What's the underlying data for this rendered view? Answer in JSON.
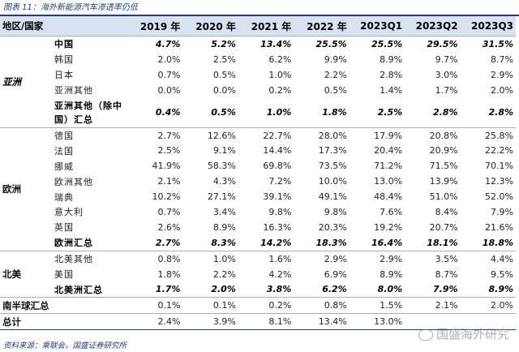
{
  "caption": "图表 11：海外新能源汽车渗透率仍低",
  "header": {
    "region_label": "地区/国家",
    "columns": [
      "2019 年",
      "2020 年",
      "2021 年",
      "2022 年",
      "2023Q1",
      "2023Q2",
      "2023Q3"
    ]
  },
  "regions": {
    "asia": "亚洲",
    "europe": "欧洲",
    "north_america": "北美",
    "southern_hemisphere": "南半球汇总",
    "total": "总计"
  },
  "rows": [
    {
      "country": "中国",
      "values": [
        "4.7%",
        "5.2%",
        "13.4%",
        "25.5%",
        "25.5%",
        "29.5%",
        "31.5%"
      ]
    },
    {
      "country": "韩国",
      "values": [
        "2.0%",
        "2.5%",
        "6.2%",
        "9.9%",
        "8.9%",
        "9.7%",
        "8.7%"
      ]
    },
    {
      "country": "日本",
      "values": [
        "0.7%",
        "0.5%",
        "1.0%",
        "2.2%",
        "2.8%",
        "3.0%",
        "2.9%"
      ]
    },
    {
      "country": "亚洲其他",
      "values": [
        "0.0%",
        "0.0%",
        "0.2%",
        "0.5%",
        "1.4%",
        "1.7%",
        "2.0%"
      ]
    },
    {
      "country": "亚洲其他（除中国）汇总",
      "values": [
        "0.4%",
        "0.5%",
        "1.0%",
        "1.8%",
        "2.5%",
        "2.8%",
        "2.8%"
      ]
    },
    {
      "country": "德国",
      "values": [
        "2.7%",
        "12.6%",
        "22.7%",
        "28.0%",
        "17.9%",
        "20.8%",
        "25.8%"
      ]
    },
    {
      "country": "法国",
      "values": [
        "2.5%",
        "9.1%",
        "14.4%",
        "17.3%",
        "20.4%",
        "20.9%",
        "22.2%"
      ]
    },
    {
      "country": "挪威",
      "values": [
        "41.9%",
        "58.3%",
        "69.8%",
        "73.5%",
        "71.2%",
        "71.5%",
        "70.1%"
      ]
    },
    {
      "country": "欧洲其他",
      "values": [
        "2.1%",
        "4.3%",
        "7.2%",
        "10.0%",
        "13.0%",
        "13.9%",
        "12.3%"
      ]
    },
    {
      "country": "瑞典",
      "values": [
        "10.2%",
        "27.1%",
        "39.1%",
        "49.1%",
        "48.4%",
        "51.0%",
        "52.0%"
      ]
    },
    {
      "country": "意大利",
      "values": [
        "0.7%",
        "3.4%",
        "9.8%",
        "9.8%",
        "7.6%",
        "8.4%",
        "7.9%"
      ]
    },
    {
      "country": "英国",
      "values": [
        "2.6%",
        "8.9%",
        "16.3%",
        "20.3%",
        "19.2%",
        "20.7%",
        "21.6%"
      ]
    },
    {
      "country": "欧洲汇总",
      "values": [
        "2.7%",
        "8.3%",
        "14.2%",
        "18.3%",
        "16.4%",
        "18.1%",
        "18.8%"
      ]
    },
    {
      "country": "北美其他",
      "values": [
        "0.8%",
        "1.0%",
        "1.6%",
        "2.9%",
        "2.9%",
        "3.5%",
        "4.4%"
      ]
    },
    {
      "country": "美国",
      "values": [
        "1.8%",
        "2.2%",
        "4.2%",
        "6.9%",
        "8.9%",
        "8.7%",
        "9.5%"
      ]
    },
    {
      "country": "北美洲汇总",
      "values": [
        "1.7%",
        "2.0%",
        "3.8%",
        "6.2%",
        "8.0%",
        "7.9%",
        "8.9%"
      ]
    },
    {
      "country": "",
      "values": [
        "0.1%",
        "0.1%",
        "0.2%",
        "0.8%",
        "1.5%",
        "2.1%",
        "2.0%"
      ]
    },
    {
      "country": "",
      "values": [
        "2.4%",
        "3.9%",
        "8.1%",
        "13.4%",
        "13.0%",
        "",
        ""
      ]
    }
  ],
  "source": "资料来源：乘联会，国盛证券研究所",
  "watermark": "国盛海外研究"
}
